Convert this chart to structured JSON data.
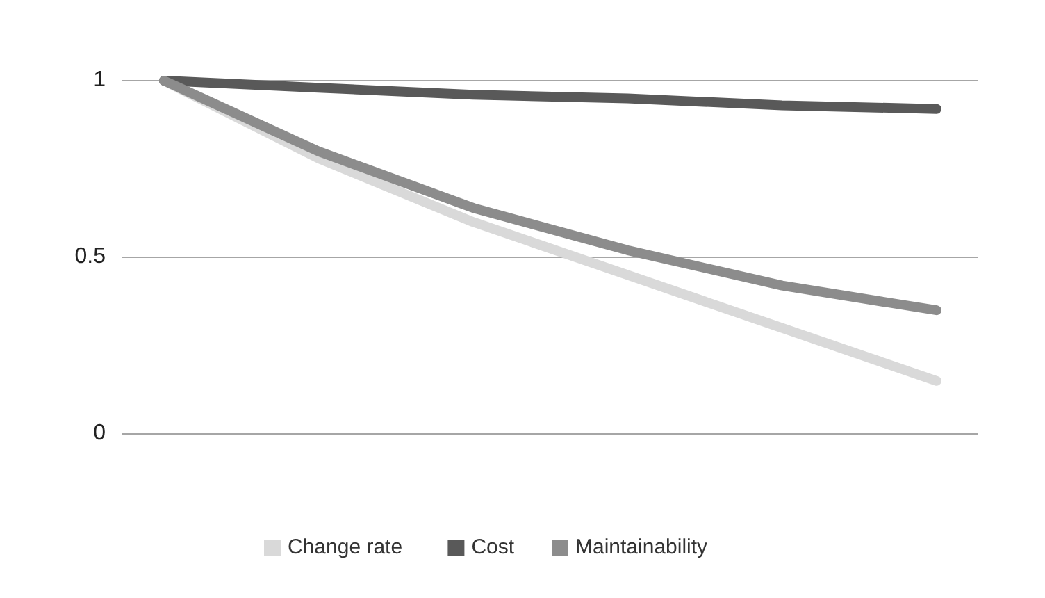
{
  "chart_data": {
    "type": "line",
    "categories": [
      null,
      null,
      null,
      null,
      null,
      null
    ],
    "series": [
      {
        "name": "Change rate",
        "color": "#d9d9d9",
        "values": [
          1,
          0.78,
          0.6,
          0.45,
          0.3,
          0.15
        ]
      },
      {
        "name": "Cost",
        "color": "#595959",
        "values": [
          1,
          0.98,
          0.96,
          0.95,
          0.93,
          0.92
        ]
      },
      {
        "name": "Maintainability",
        "color": "#8c8c8c",
        "values": [
          1,
          0.8,
          0.64,
          0.52,
          0.42,
          0.35
        ]
      }
    ],
    "ylim": [
      0,
      1
    ],
    "yticks": [
      0,
      0.5,
      1
    ],
    "grid": "y",
    "legend": "bottom",
    "tick_labels": "y",
    "marker": "none",
    "line_style": "solid"
  }
}
